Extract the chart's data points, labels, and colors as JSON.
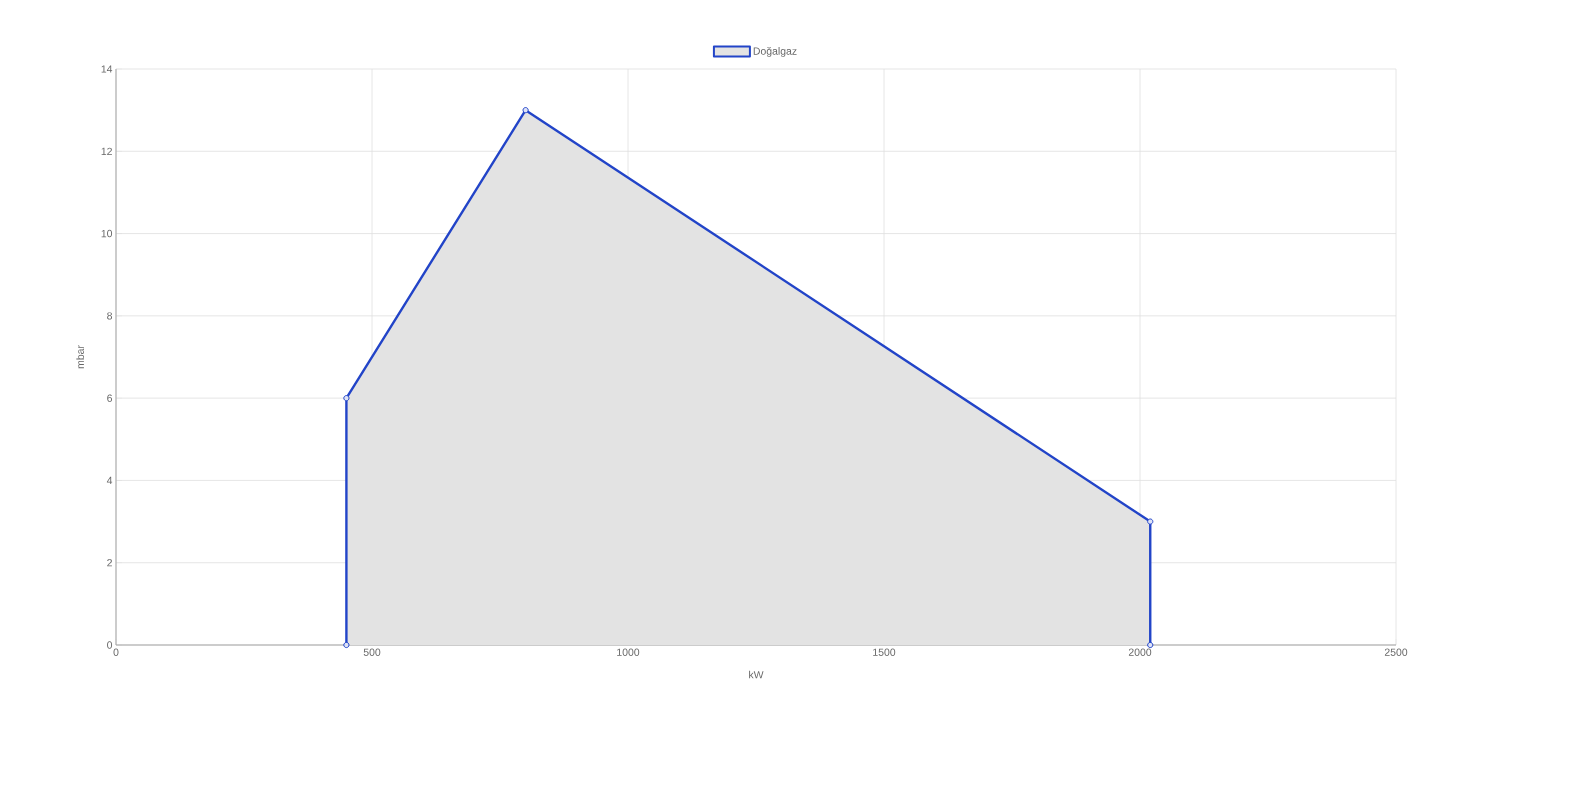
{
  "chart_data": {
    "type": "area",
    "xlabel": "kW",
    "ylabel": "mbar",
    "series": [
      {
        "name": "Doğalgaz",
        "color": "#2244c8",
        "x": [
          450,
          450,
          800,
          2020,
          2020
        ],
        "values": [
          0,
          6,
          13,
          3,
          0
        ]
      }
    ],
    "xlim": [
      0,
      2500
    ],
    "xticks": [
      0,
      500,
      1000,
      1500,
      2000,
      2500
    ],
    "ylim": [
      0,
      14
    ],
    "yticks": [
      0,
      2,
      4,
      6,
      8,
      10,
      12,
      14
    ],
    "grid": true,
    "legend": "top",
    "marker": "circle"
  }
}
